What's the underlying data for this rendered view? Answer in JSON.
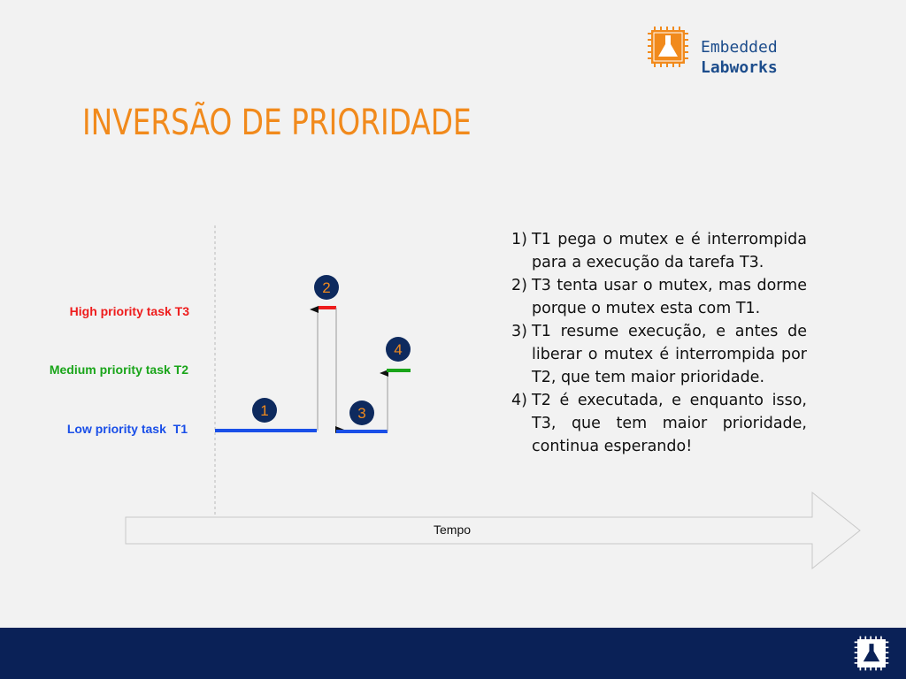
{
  "title": "INVERSÃO DE PRIORIDADE",
  "logo": {
    "line1": "Embedded",
    "line2": "Labworks",
    "icon": "flask-chip-icon"
  },
  "diagram": {
    "lanes": [
      {
        "label": "High priority task T3",
        "color": "#ee1c1c"
      },
      {
        "label": "Medium priority task T2",
        "color": "#1aa51a"
      },
      {
        "label": "Low priority task  T1",
        "color": "#1a4fe8"
      }
    ],
    "steps": [
      "1",
      "2",
      "3",
      "4"
    ],
    "axis_label": "Tempo",
    "badge_color": "#0e2a5e",
    "badge_text_color": "#f18a1c"
  },
  "list": [
    {
      "n": "1)",
      "text": "T1 pega o mutex e é interrompida para a execução da tarefa T3."
    },
    {
      "n": "2)",
      "text": "T3 tenta usar o mutex, mas dorme porque o mutex esta com T1."
    },
    {
      "n": "3)",
      "text": "T1 resume execução, e antes de liberar o mutex é interrompida por T2, que tem maior prioridade."
    },
    {
      "n": "4)",
      "text": "T2 é executada, e enquanto isso, T3, que tem maior prioridade, continua esperando!"
    }
  ]
}
